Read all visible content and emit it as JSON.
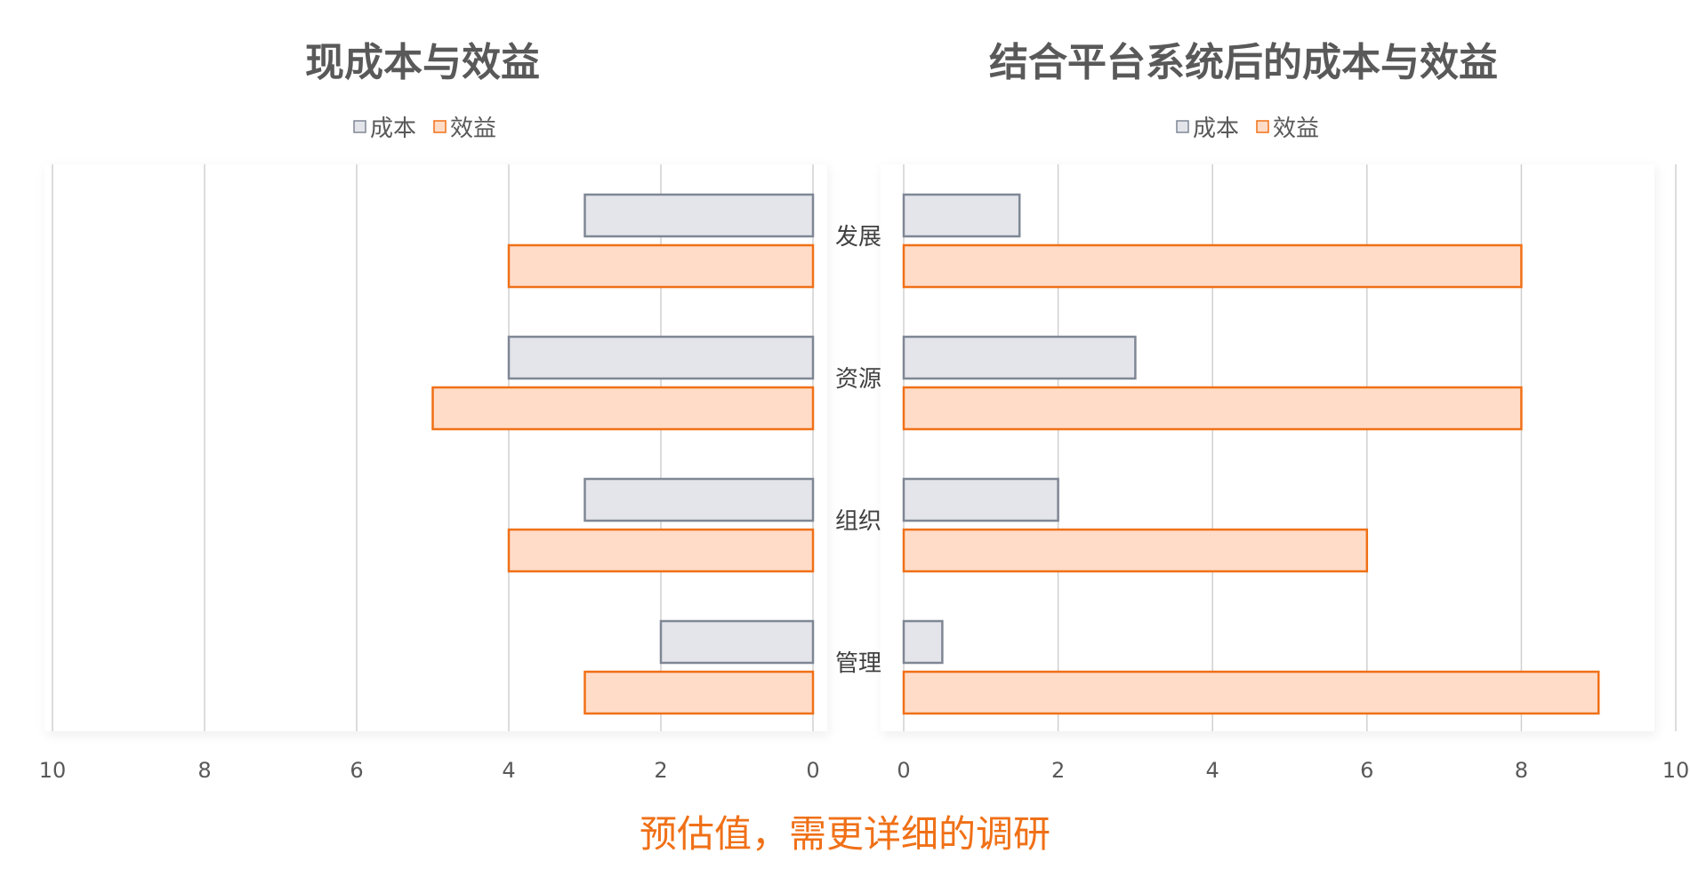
{
  "chart_data": [
    {
      "type": "bar",
      "orientation": "horizontal-reversed",
      "title": "现成本与效益",
      "categories": [
        "发展",
        "资源",
        "组织",
        "管理"
      ],
      "series": [
        {
          "name": "成本",
          "values": [
            3,
            4,
            3,
            2
          ]
        },
        {
          "name": "效益",
          "values": [
            4,
            5,
            4,
            3
          ]
        }
      ],
      "xlim": [
        0,
        10
      ],
      "ticks": [
        "10",
        "8",
        "6",
        "4",
        "2",
        "0"
      ],
      "tick_values": [
        10,
        8,
        6,
        4,
        2,
        0
      ],
      "grid": true,
      "legend_position": "top"
    },
    {
      "type": "bar",
      "orientation": "horizontal",
      "title": "结合平台系统后的成本与效益",
      "categories": [
        "发展",
        "资源",
        "组织",
        "管理"
      ],
      "series": [
        {
          "name": "成本",
          "values": [
            1.5,
            3,
            2,
            0.5
          ]
        },
        {
          "name": "效益",
          "values": [
            8,
            8,
            6,
            9
          ]
        }
      ],
      "xlim": [
        0,
        10
      ],
      "ticks": [
        "0",
        "2",
        "4",
        "6",
        "8",
        "10"
      ],
      "tick_values": [
        0,
        2,
        4,
        6,
        8,
        10
      ],
      "grid": true,
      "legend_position": "top"
    }
  ],
  "colors": {
    "cost_fill": "#E3E5EA",
    "cost_stroke": "#7F8795",
    "benefit_fill": "#FFDCC8",
    "benefit_stroke": "#F07017",
    "grid": "#D0D0D0",
    "title": "#595959",
    "label": "#404040",
    "tick": "#595959",
    "footer": "#F07017"
  },
  "footer_note": "预估值，需更详细的调研"
}
